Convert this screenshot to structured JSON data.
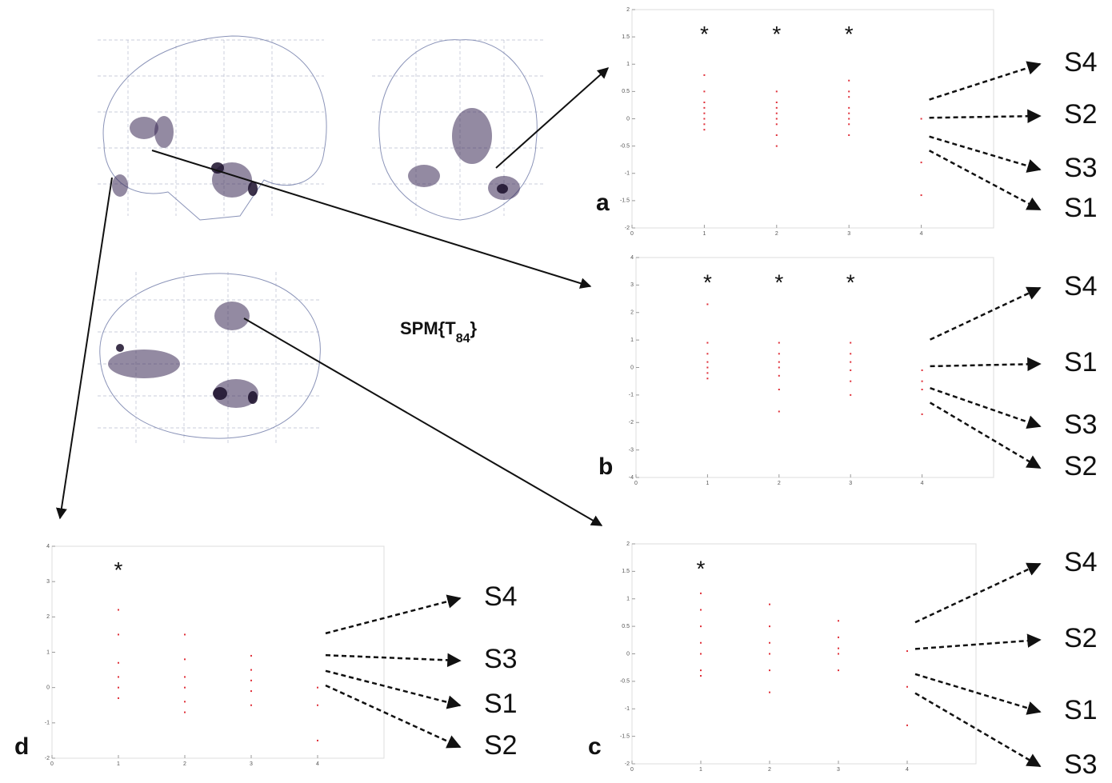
{
  "chart_data": [
    {
      "type": "scatter",
      "label": "a",
      "xlim": [
        0,
        5
      ],
      "xticks": [
        0,
        1,
        2,
        3,
        4
      ],
      "ylim": [
        -2,
        2
      ],
      "yticks": [
        -2,
        -1.5,
        -1,
        -0.5,
        0,
        0.5,
        1,
        1.5,
        2
      ],
      "x": [
        1,
        1,
        1,
        1,
        1,
        1,
        1,
        1,
        2,
        2,
        2,
        2,
        2,
        2,
        2,
        2,
        3,
        3,
        3,
        3,
        3,
        3,
        3,
        3,
        4,
        4,
        4
      ],
      "values": [
        0.8,
        0.5,
        0.3,
        0.1,
        0,
        -0.1,
        -0.2,
        0.2,
        0.5,
        0.3,
        0.1,
        0,
        -0.1,
        -0.3,
        -0.5,
        0.2,
        0.7,
        0.4,
        0.2,
        0.1,
        -0.1,
        -0.3,
        0.5,
        0,
        0,
        -0.8,
        -1.4
      ],
      "annotations": [
        {
          "text": "*",
          "x": 1
        },
        {
          "text": "*",
          "x": 2
        },
        {
          "text": "*",
          "x": 3
        }
      ],
      "color": "#e0303a",
      "outcomes": [
        "S4",
        "S2",
        "S3",
        "S1"
      ]
    },
    {
      "type": "scatter",
      "label": "b",
      "xlim": [
        0,
        5
      ],
      "xticks": [
        0,
        1,
        2,
        3,
        4
      ],
      "ylim": [
        -4,
        4
      ],
      "yticks": [
        -4,
        -3,
        -2,
        -1,
        0,
        1,
        2,
        3,
        4
      ],
      "x": [
        1,
        1,
        1,
        1,
        1,
        1,
        1,
        2,
        2,
        2,
        2,
        2,
        2,
        2,
        3,
        3,
        3,
        3,
        3,
        3,
        4,
        4,
        4,
        4
      ],
      "values": [
        2.3,
        0.9,
        0.5,
        0.2,
        0,
        -0.2,
        -0.4,
        0.9,
        0.5,
        0.2,
        0,
        -0.3,
        -0.8,
        -1.6,
        0.9,
        0.5,
        0.2,
        -0.1,
        -0.5,
        -1,
        -0.1,
        -0.5,
        -0.8,
        -1.7
      ],
      "annotations": [
        {
          "text": "*",
          "x": 1
        },
        {
          "text": "*",
          "x": 2
        },
        {
          "text": "*",
          "x": 3
        }
      ],
      "color": "#e0303a",
      "outcomes": [
        "S4",
        "S1",
        "S3",
        "S2"
      ]
    },
    {
      "type": "scatter",
      "label": "c",
      "xlim": [
        0,
        5
      ],
      "xticks": [
        0,
        1,
        2,
        3,
        4
      ],
      "ylim": [
        -2,
        2
      ],
      "yticks": [
        -2,
        -1.5,
        -1,
        -0.5,
        0,
        0.5,
        1,
        1.5,
        2
      ],
      "x": [
        1,
        1,
        1,
        1,
        1,
        1,
        1,
        2,
        2,
        2,
        2,
        2,
        2,
        3,
        3,
        3,
        3,
        3,
        4,
        4,
        4
      ],
      "values": [
        1.1,
        0.8,
        0.5,
        0.2,
        0,
        -0.3,
        -0.4,
        0.9,
        0.5,
        0.2,
        0,
        -0.3,
        -0.7,
        0.6,
        0.3,
        0.1,
        0,
        -0.3,
        0.05,
        -0.6,
        -1.3
      ],
      "annotations": [
        {
          "text": "*",
          "x": 1
        }
      ],
      "color": "#e0303a",
      "outcomes": [
        "S4",
        "S2",
        "S1",
        "S3"
      ]
    },
    {
      "type": "scatter",
      "label": "d",
      "xlim": [
        0,
        5
      ],
      "xticks": [
        0,
        1,
        2,
        3,
        4
      ],
      "ylim": [
        -2,
        4
      ],
      "yticks": [
        -2,
        -1,
        0,
        1,
        2,
        3,
        4
      ],
      "x": [
        1,
        1,
        1,
        1,
        1,
        1,
        2,
        2,
        2,
        2,
        2,
        2,
        3,
        3,
        3,
        3,
        3,
        4,
        4,
        4
      ],
      "values": [
        2.2,
        1.5,
        0.7,
        0.3,
        0,
        -0.3,
        1.5,
        0.8,
        0.3,
        0,
        -0.4,
        -0.7,
        0.9,
        0.5,
        0.2,
        -0.1,
        -0.5,
        0,
        -0.5,
        -1.5
      ],
      "annotations": [
        {
          "text": "*",
          "x": 1
        }
      ],
      "color": "#e0303a",
      "outcomes": [
        "S4",
        "S3",
        "S1",
        "S2"
      ]
    }
  ],
  "spm_label": {
    "main": "SPM{T",
    "sub": "84",
    "close": "}"
  }
}
